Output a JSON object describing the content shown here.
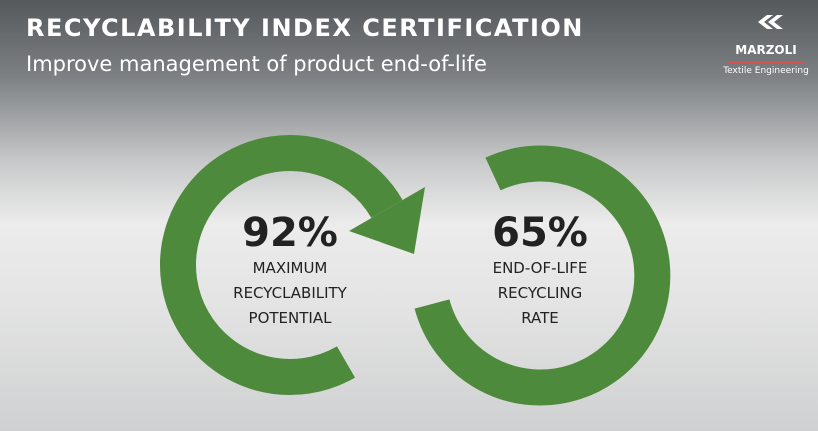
{
  "header": {
    "title": "RECYCLABILITY INDEX CERTIFICATION",
    "subtitle": "Improve management of product end-of-life"
  },
  "logo": {
    "name": "MARZOLI",
    "tagline": "Textile Engineering"
  },
  "stats": [
    {
      "value": "92%",
      "label_lines": [
        "MAXIMUM",
        "RECYCLABILITY",
        "POTENTIAL"
      ]
    },
    {
      "value": "65%",
      "label_lines": [
        "END-OF-LIFE",
        "RECYCLING",
        "RATE"
      ]
    }
  ]
}
